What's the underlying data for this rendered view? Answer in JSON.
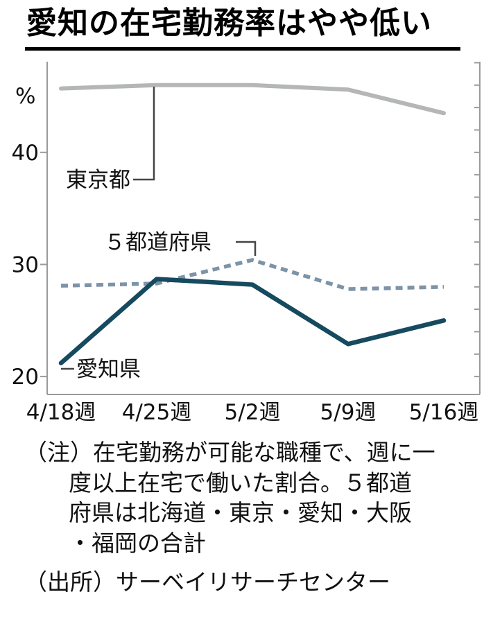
{
  "title": "愛知の在宅勤務率はやや低い",
  "chart_data": {
    "type": "line",
    "categories": [
      "4/18週",
      "4/25週",
      "5/2週",
      "5/9週",
      "5/16週"
    ],
    "series": [
      {
        "name": "東京都",
        "values": [
          45.7,
          46.0,
          46.0,
          45.6,
          43.5
        ],
        "color": "#b4b6b7",
        "style": "solid",
        "width": 6
      },
      {
        "name": "５都道府県",
        "values": [
          28.1,
          28.3,
          30.4,
          27.8,
          28.0
        ],
        "color": "#7d93a7",
        "style": "dashed",
        "width": 5.5
      },
      {
        "name": "愛知県",
        "values": [
          21.2,
          28.7,
          28.2,
          22.9,
          25.0
        ],
        "color": "#164a5f",
        "style": "solid",
        "width": 6.5
      }
    ],
    "unit_label": "%",
    "y_ticks": [
      40,
      30,
      20
    ],
    "ylim": [
      18.4,
      48.4
    ],
    "grid": false,
    "legend": "inline-callouts"
  },
  "notes": {
    "lines": [
      "（注）在宅勤務が可能な職種で、週に一",
      "度以上在宅で働いた割合。５都道",
      "府県は北海道・東京・愛知・大阪",
      "・福岡の合計"
    ],
    "source": "（出所）サーベイリサーチセンター"
  }
}
